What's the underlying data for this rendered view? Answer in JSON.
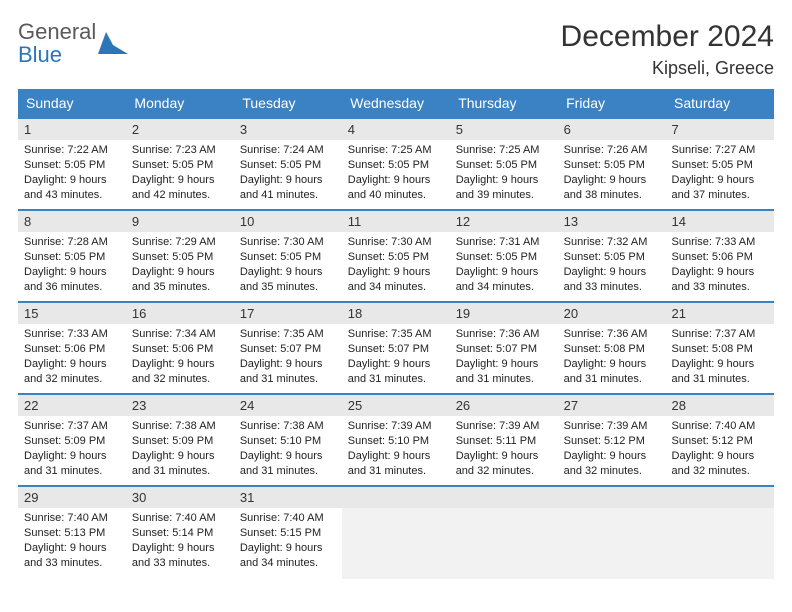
{
  "logo": {
    "word1": "General",
    "word2": "Blue"
  },
  "colors": {
    "accent": "#3b82c4",
    "header_text": "#ffffff",
    "daynum_bg": "#e8e8e8",
    "text": "#333333",
    "logo_gray": "#5a5a5a",
    "logo_blue": "#2a76b9"
  },
  "title": "December 2024",
  "location": "Kipseli, Greece",
  "weekdays": [
    "Sunday",
    "Monday",
    "Tuesday",
    "Wednesday",
    "Thursday",
    "Friday",
    "Saturday"
  ],
  "days": [
    {
      "n": "1",
      "sr": "7:22 AM",
      "ss": "5:05 PM",
      "dl": "9 hours and 43 minutes."
    },
    {
      "n": "2",
      "sr": "7:23 AM",
      "ss": "5:05 PM",
      "dl": "9 hours and 42 minutes."
    },
    {
      "n": "3",
      "sr": "7:24 AM",
      "ss": "5:05 PM",
      "dl": "9 hours and 41 minutes."
    },
    {
      "n": "4",
      "sr": "7:25 AM",
      "ss": "5:05 PM",
      "dl": "9 hours and 40 minutes."
    },
    {
      "n": "5",
      "sr": "7:25 AM",
      "ss": "5:05 PM",
      "dl": "9 hours and 39 minutes."
    },
    {
      "n": "6",
      "sr": "7:26 AM",
      "ss": "5:05 PM",
      "dl": "9 hours and 38 minutes."
    },
    {
      "n": "7",
      "sr": "7:27 AM",
      "ss": "5:05 PM",
      "dl": "9 hours and 37 minutes."
    },
    {
      "n": "8",
      "sr": "7:28 AM",
      "ss": "5:05 PM",
      "dl": "9 hours and 36 minutes."
    },
    {
      "n": "9",
      "sr": "7:29 AM",
      "ss": "5:05 PM",
      "dl": "9 hours and 35 minutes."
    },
    {
      "n": "10",
      "sr": "7:30 AM",
      "ss": "5:05 PM",
      "dl": "9 hours and 35 minutes."
    },
    {
      "n": "11",
      "sr": "7:30 AM",
      "ss": "5:05 PM",
      "dl": "9 hours and 34 minutes."
    },
    {
      "n": "12",
      "sr": "7:31 AM",
      "ss": "5:05 PM",
      "dl": "9 hours and 34 minutes."
    },
    {
      "n": "13",
      "sr": "7:32 AM",
      "ss": "5:05 PM",
      "dl": "9 hours and 33 minutes."
    },
    {
      "n": "14",
      "sr": "7:33 AM",
      "ss": "5:06 PM",
      "dl": "9 hours and 33 minutes."
    },
    {
      "n": "15",
      "sr": "7:33 AM",
      "ss": "5:06 PM",
      "dl": "9 hours and 32 minutes."
    },
    {
      "n": "16",
      "sr": "7:34 AM",
      "ss": "5:06 PM",
      "dl": "9 hours and 32 minutes."
    },
    {
      "n": "17",
      "sr": "7:35 AM",
      "ss": "5:07 PM",
      "dl": "9 hours and 31 minutes."
    },
    {
      "n": "18",
      "sr": "7:35 AM",
      "ss": "5:07 PM",
      "dl": "9 hours and 31 minutes."
    },
    {
      "n": "19",
      "sr": "7:36 AM",
      "ss": "5:07 PM",
      "dl": "9 hours and 31 minutes."
    },
    {
      "n": "20",
      "sr": "7:36 AM",
      "ss": "5:08 PM",
      "dl": "9 hours and 31 minutes."
    },
    {
      "n": "21",
      "sr": "7:37 AM",
      "ss": "5:08 PM",
      "dl": "9 hours and 31 minutes."
    },
    {
      "n": "22",
      "sr": "7:37 AM",
      "ss": "5:09 PM",
      "dl": "9 hours and 31 minutes."
    },
    {
      "n": "23",
      "sr": "7:38 AM",
      "ss": "5:09 PM",
      "dl": "9 hours and 31 minutes."
    },
    {
      "n": "24",
      "sr": "7:38 AM",
      "ss": "5:10 PM",
      "dl": "9 hours and 31 minutes."
    },
    {
      "n": "25",
      "sr": "7:39 AM",
      "ss": "5:10 PM",
      "dl": "9 hours and 31 minutes."
    },
    {
      "n": "26",
      "sr": "7:39 AM",
      "ss": "5:11 PM",
      "dl": "9 hours and 32 minutes."
    },
    {
      "n": "27",
      "sr": "7:39 AM",
      "ss": "5:12 PM",
      "dl": "9 hours and 32 minutes."
    },
    {
      "n": "28",
      "sr": "7:40 AM",
      "ss": "5:12 PM",
      "dl": "9 hours and 32 minutes."
    },
    {
      "n": "29",
      "sr": "7:40 AM",
      "ss": "5:13 PM",
      "dl": "9 hours and 33 minutes."
    },
    {
      "n": "30",
      "sr": "7:40 AM",
      "ss": "5:14 PM",
      "dl": "9 hours and 33 minutes."
    },
    {
      "n": "31",
      "sr": "7:40 AM",
      "ss": "5:15 PM",
      "dl": "9 hours and 34 minutes."
    }
  ],
  "labels": {
    "sunrise": "Sunrise:",
    "sunset": "Sunset:",
    "daylight": "Daylight:"
  },
  "layout": {
    "start_weekday": 0,
    "trailing_empty": 4
  }
}
